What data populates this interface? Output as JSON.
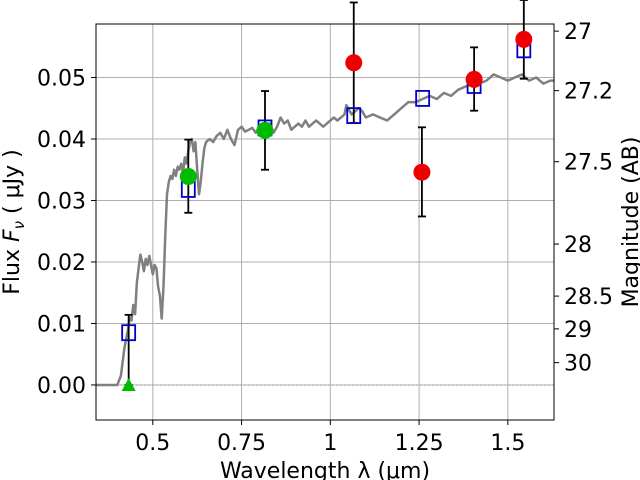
{
  "chart_data": {
    "type": "scatter",
    "xlabel": "Wavelength  λ (μm)",
    "ylabel": "Flux  F_ν  ( μJy )",
    "ylabel_parts": [
      "Flux  ",
      "F",
      "ν",
      "  ( μJy )"
    ],
    "y2label": "Magnitude (AB)",
    "xlim": [
      0.34,
      1.63
    ],
    "ylim": [
      -0.0057,
      0.0587
    ],
    "grid": true,
    "x_ticks": [
      {
        "value": 0.5,
        "label": "0.5"
      },
      {
        "value": 0.75,
        "label": "0.75"
      },
      {
        "value": 1.0,
        "label": "1"
      },
      {
        "value": 1.25,
        "label": "1.25"
      },
      {
        "value": 1.5,
        "label": "1.5"
      }
    ],
    "y_ticks": [
      {
        "value": 0.0,
        "label": "0.00"
      },
      {
        "value": 0.01,
        "label": "0.01"
      },
      {
        "value": 0.02,
        "label": "0.02"
      },
      {
        "value": 0.03,
        "label": "0.03"
      },
      {
        "value": 0.04,
        "label": "0.04"
      },
      {
        "value": 0.05,
        "label": "0.05"
      }
    ],
    "y2_ticks": [
      {
        "label": "27",
        "flux": 0.05754
      },
      {
        "label": "27.2",
        "flux": 0.04786
      },
      {
        "label": "27.5",
        "flux": 0.03631
      },
      {
        "label": "28",
        "flux": 0.02291
      },
      {
        "label": "28.5",
        "flux": 0.01445
      },
      {
        "label": "29",
        "flux": 0.00912
      },
      {
        "label": "30",
        "flux": 0.00363
      }
    ],
    "series": [
      {
        "kind": "spectrum",
        "color": "#808080",
        "points": [
          [
            0.34,
            0.0
          ],
          [
            0.4,
            0.0
          ],
          [
            0.41,
            0.0015
          ],
          [
            0.42,
            0.006
          ],
          [
            0.43,
            0.009
          ],
          [
            0.435,
            0.011
          ],
          [
            0.44,
            0.0105
          ],
          [
            0.445,
            0.013
          ],
          [
            0.45,
            0.0115
          ],
          [
            0.455,
            0.0165
          ],
          [
            0.46,
            0.019
          ],
          [
            0.465,
            0.0212
          ],
          [
            0.47,
            0.02
          ],
          [
            0.475,
            0.0185
          ],
          [
            0.48,
            0.0205
          ],
          [
            0.485,
            0.0195
          ],
          [
            0.49,
            0.021
          ],
          [
            0.495,
            0.0195
          ],
          [
            0.5,
            0.018
          ],
          [
            0.505,
            0.0195
          ],
          [
            0.51,
            0.019
          ],
          [
            0.515,
            0.016
          ],
          [
            0.52,
            0.0145
          ],
          [
            0.525,
            0.0108
          ],
          [
            0.53,
            0.016
          ],
          [
            0.535,
            0.024
          ],
          [
            0.54,
            0.031
          ],
          [
            0.545,
            0.033
          ],
          [
            0.55,
            0.034
          ],
          [
            0.555,
            0.0335
          ],
          [
            0.56,
            0.035
          ],
          [
            0.565,
            0.034
          ],
          [
            0.57,
            0.0355
          ],
          [
            0.575,
            0.035
          ],
          [
            0.58,
            0.036
          ],
          [
            0.585,
            0.0345
          ],
          [
            0.59,
            0.037
          ],
          [
            0.595,
            0.036
          ],
          [
            0.6,
            0.038
          ],
          [
            0.605,
            0.0395
          ],
          [
            0.61,
            0.04
          ],
          [
            0.615,
            0.038
          ],
          [
            0.62,
            0.0395
          ],
          [
            0.625,
            0.035
          ],
          [
            0.63,
            0.031
          ],
          [
            0.635,
            0.033
          ],
          [
            0.64,
            0.036
          ],
          [
            0.645,
            0.0385
          ],
          [
            0.65,
            0.0395
          ],
          [
            0.66,
            0.04
          ],
          [
            0.67,
            0.0395
          ],
          [
            0.68,
            0.0405
          ],
          [
            0.69,
            0.041
          ],
          [
            0.7,
            0.04
          ],
          [
            0.71,
            0.0415
          ],
          [
            0.72,
            0.04
          ],
          [
            0.73,
            0.039
          ],
          [
            0.74,
            0.0415
          ],
          [
            0.75,
            0.042
          ],
          [
            0.76,
            0.0412
          ],
          [
            0.77,
            0.0415
          ],
          [
            0.78,
            0.0418
          ],
          [
            0.79,
            0.041
          ],
          [
            0.8,
            0.042
          ],
          [
            0.81,
            0.0422
          ],
          [
            0.82,
            0.0423
          ],
          [
            0.83,
            0.0425
          ],
          [
            0.84,
            0.041
          ],
          [
            0.85,
            0.042
          ],
          [
            0.86,
            0.0435
          ],
          [
            0.87,
            0.0425
          ],
          [
            0.88,
            0.043
          ],
          [
            0.89,
            0.0415
          ],
          [
            0.9,
            0.042
          ],
          [
            0.91,
            0.0425
          ],
          [
            0.92,
            0.042
          ],
          [
            0.93,
            0.043
          ],
          [
            0.94,
            0.042
          ],
          [
            0.95,
            0.0425
          ],
          [
            0.96,
            0.043
          ],
          [
            0.97,
            0.0425
          ],
          [
            0.98,
            0.042
          ],
          [
            0.99,
            0.0425
          ],
          [
            1.0,
            0.043
          ],
          [
            1.01,
            0.0435
          ],
          [
            1.02,
            0.043
          ],
          [
            1.03,
            0.0435
          ],
          [
            1.04,
            0.044
          ],
          [
            1.045,
            0.0455
          ],
          [
            1.05,
            0.045
          ],
          [
            1.06,
            0.044
          ],
          [
            1.07,
            0.0445
          ],
          [
            1.08,
            0.045
          ],
          [
            1.09,
            0.0445
          ],
          [
            1.1,
            0.0435
          ],
          [
            1.12,
            0.044
          ],
          [
            1.14,
            0.0435
          ],
          [
            1.16,
            0.043
          ],
          [
            1.18,
            0.044
          ],
          [
            1.2,
            0.045
          ],
          [
            1.22,
            0.046
          ],
          [
            1.24,
            0.046
          ],
          [
            1.26,
            0.0465
          ],
          [
            1.28,
            0.047
          ],
          [
            1.3,
            0.0465
          ],
          [
            1.32,
            0.0475
          ],
          [
            1.34,
            0.047
          ],
          [
            1.36,
            0.048
          ],
          [
            1.38,
            0.0485
          ],
          [
            1.4,
            0.049
          ],
          [
            1.42,
            0.049
          ],
          [
            1.44,
            0.0495
          ],
          [
            1.46,
            0.0505
          ],
          [
            1.48,
            0.05
          ],
          [
            1.5,
            0.0495
          ],
          [
            1.52,
            0.05
          ],
          [
            1.54,
            0.0505
          ],
          [
            1.56,
            0.0495
          ],
          [
            1.58,
            0.05
          ],
          [
            1.6,
            0.049
          ],
          [
            1.62,
            0.0495
          ],
          [
            1.63,
            0.0495
          ]
        ]
      },
      {
        "kind": "model_photometry",
        "marker": "open-square",
        "color": "#0000cc",
        "points": [
          [
            0.432,
            0.0085
          ],
          [
            0.6,
            0.0318
          ],
          [
            0.816,
            0.0418
          ],
          [
            1.066,
            0.0438
          ],
          [
            1.26,
            0.0466
          ],
          [
            1.405,
            0.0487
          ],
          [
            1.545,
            0.0545
          ]
        ]
      },
      {
        "kind": "observed_flux",
        "marker": "circle",
        "color": "#ee0000",
        "points": [
          {
            "x": 1.066,
            "y": 0.0524,
            "err": [
              0.0426,
              0.0622
            ]
          },
          {
            "x": 1.258,
            "y": 0.0346,
            "err": [
              0.0274,
              0.0419
            ]
          },
          {
            "x": 1.405,
            "y": 0.0497,
            "err": [
              0.0446,
              0.0549
            ]
          },
          {
            "x": 1.545,
            "y": 0.0562,
            "err": [
              0.0498,
              0.0626
            ]
          }
        ]
      },
      {
        "kind": "observed_flux_optical",
        "marker": "circle",
        "color": "#00bb00",
        "points": [
          {
            "x": 0.6,
            "y": 0.0339,
            "err": [
              0.028,
              0.0399
            ]
          },
          {
            "x": 0.816,
            "y": 0.0414,
            "err": [
              0.035,
              0.0478
            ]
          }
        ]
      },
      {
        "kind": "upper_limit",
        "marker": "triangle",
        "color": "#00bb00",
        "points": [
          {
            "x": 0.432,
            "y": 0.0,
            "err": [
              0.0,
              0.0114
            ]
          }
        ]
      }
    ]
  }
}
